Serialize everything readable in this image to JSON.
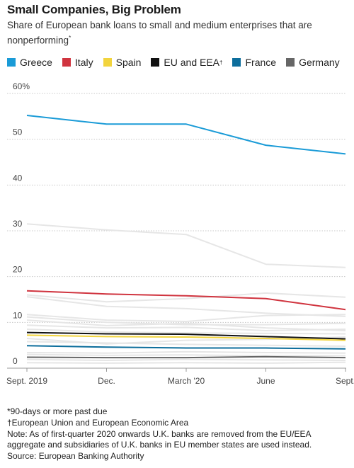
{
  "title": "Small Companies, Big Problem",
  "subtitle": "Share of European bank loans to small and medium enterprises that are nonperforming",
  "subtitle_marker": "*",
  "chart_data": {
    "type": "line",
    "x": [
      "Sept. 2019",
      "Dec.",
      "March '20",
      "June",
      "Sept."
    ],
    "ylim": [
      0,
      60
    ],
    "yticks": [
      "0",
      "10",
      "20",
      "30",
      "40",
      "50",
      "60%"
    ],
    "yticks_values": [
      0,
      10,
      20,
      30,
      40,
      50,
      60
    ],
    "grid": true,
    "legend_position": "top",
    "series": [
      {
        "name": "Greece",
        "color": "#1a9bd7",
        "values": [
          55.2,
          53.3,
          53.3,
          48.7,
          46.8
        ]
      },
      {
        "name": "Italy",
        "color": "#d0343f",
        "values": [
          16.9,
          16.2,
          15.8,
          15.2,
          12.8
        ]
      },
      {
        "name": "Spain",
        "color": "#f2d43d",
        "values": [
          7.2,
          6.9,
          6.8,
          6.5,
          6.1
        ]
      },
      {
        "name": "EU and EEA",
        "name_marker": "†",
        "color": "#111111",
        "values": [
          7.8,
          7.5,
          7.4,
          6.9,
          6.4
        ]
      },
      {
        "name": "France",
        "color": "#0d6e9c",
        "values": [
          4.9,
          4.6,
          4.4,
          4.4,
          4.2
        ]
      },
      {
        "name": "Germany",
        "color": "#666666",
        "values": [
          2.4,
          2.3,
          2.3,
          2.5,
          2.3
        ]
      }
    ],
    "background_series": [
      [
        31.5,
        30.2,
        29.2,
        22.7,
        22.0
      ],
      [
        16.0,
        14.5,
        15.2,
        16.4,
        15.5
      ],
      [
        15.6,
        13.5,
        13.0,
        12.0,
        11.3
      ],
      [
        11.7,
        10.5,
        10.2,
        11.5,
        11.7
      ],
      [
        11.2,
        10.0,
        9.5,
        9.5,
        9.8
      ],
      [
        10.5,
        9.3,
        9.8,
        8.8,
        8.2
      ],
      [
        9.4,
        8.8,
        8.9,
        8.2,
        8.5
      ],
      [
        8.5,
        7.9,
        7.7,
        7.6,
        7.5
      ],
      [
        6.5,
        5.3,
        6.1,
        6.3,
        6.8
      ],
      [
        5.8,
        5.5,
        5.2,
        5.0,
        4.8
      ],
      [
        3.4,
        3.3,
        3.6,
        3.4,
        3.3
      ],
      [
        3.0,
        2.8,
        2.9,
        2.7,
        2.7
      ],
      [
        1.9,
        1.7,
        1.9,
        1.8,
        1.7
      ],
      [
        1.2,
        1.1,
        1.2,
        1.1,
        1.3
      ]
    ],
    "background_color": "#e6e6e6"
  },
  "notes": {
    "footnote_star": "*90-days or more past due",
    "footnote_dagger": "†European Union and European Economic Area",
    "note": "Note: As of first-quarter 2020 onwards U.K. banks are removed from the EU/EEA aggregate and subsidiaries of U.K. banks in EU member states are used instead.",
    "source": "Source: European Banking Authority"
  }
}
